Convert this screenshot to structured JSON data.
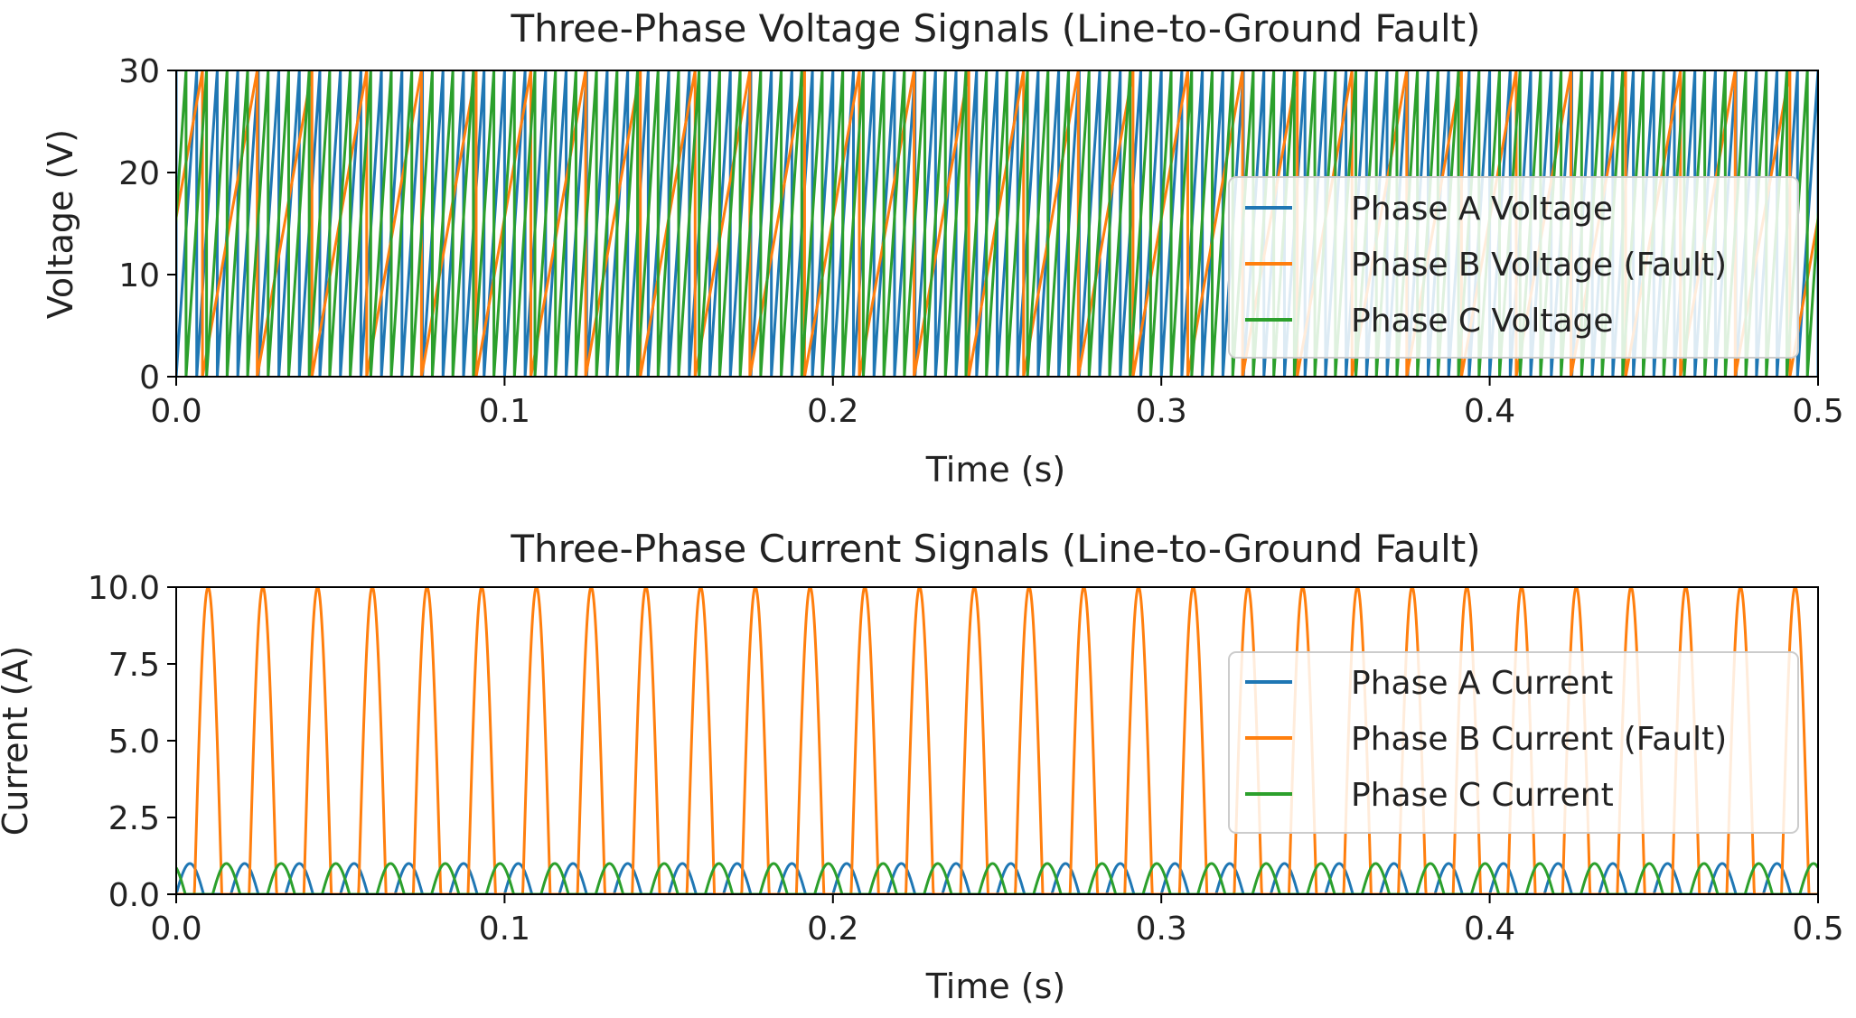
{
  "colors": {
    "phase_a": "#1f77b4",
    "phase_b": "#ff7f0e",
    "phase_c": "#2ca02c"
  },
  "chart_data": [
    {
      "type": "line",
      "title": "Three-Phase Voltage Signals (Line-to-Ground Fault)",
      "xlabel": "Time (s)",
      "ylabel": "Voltage (V)",
      "xlim": [
        0.0,
        0.5
      ],
      "ylim": [
        0,
        30
      ],
      "xticks": [
        "0.0",
        "0.1",
        "0.2",
        "0.3",
        "0.4",
        "0.5"
      ],
      "yticks": [
        "0",
        "10",
        "20",
        "30"
      ],
      "grid": false,
      "legend_position": "right",
      "series": [
        {
          "name": "Phase A Voltage",
          "color": "#1f77b4",
          "waveform": "sawtooth",
          "period_s": 0.00625,
          "min": 0,
          "max": 30,
          "offset_s": 0.0
        },
        {
          "name": "Phase B Voltage (Fault)",
          "color": "#ff7f0e",
          "waveform": "sawtooth",
          "period_s": 0.01667,
          "min": 0,
          "max": 30,
          "offset_s": 0.008
        },
        {
          "name": "Phase C Voltage",
          "color": "#2ca02c",
          "waveform": "sawtooth",
          "period_s": 0.00625,
          "min": 0,
          "max": 30,
          "offset_s": 0.003
        }
      ]
    },
    {
      "type": "line",
      "title": "Three-Phase Current Signals (Line-to-Ground Fault)",
      "xlabel": "Time (s)",
      "ylabel": "Current (A)",
      "xlim": [
        0.0,
        0.5
      ],
      "ylim": [
        0,
        10
      ],
      "xticks": [
        "0.0",
        "0.1",
        "0.2",
        "0.3",
        "0.4",
        "0.5"
      ],
      "yticks": [
        "0.0",
        "2.5",
        "5.0",
        "7.5",
        "10.0"
      ],
      "grid": false,
      "legend_position": "right",
      "series": [
        {
          "name": "Phase A Current",
          "color": "#1f77b4",
          "waveform": "rectified_sine",
          "frequency_hz": 60,
          "amplitude": 1.0,
          "phase_deg": 0
        },
        {
          "name": "Phase B Current (Fault)",
          "color": "#ff7f0e",
          "waveform": "rectified_sine",
          "frequency_hz": 60,
          "amplitude": 10.0,
          "phase_deg": -120
        },
        {
          "name": "Phase C Current",
          "color": "#2ca02c",
          "waveform": "rectified_sine",
          "frequency_hz": 60,
          "amplitude": 1.0,
          "phase_deg": 120
        }
      ]
    }
  ]
}
